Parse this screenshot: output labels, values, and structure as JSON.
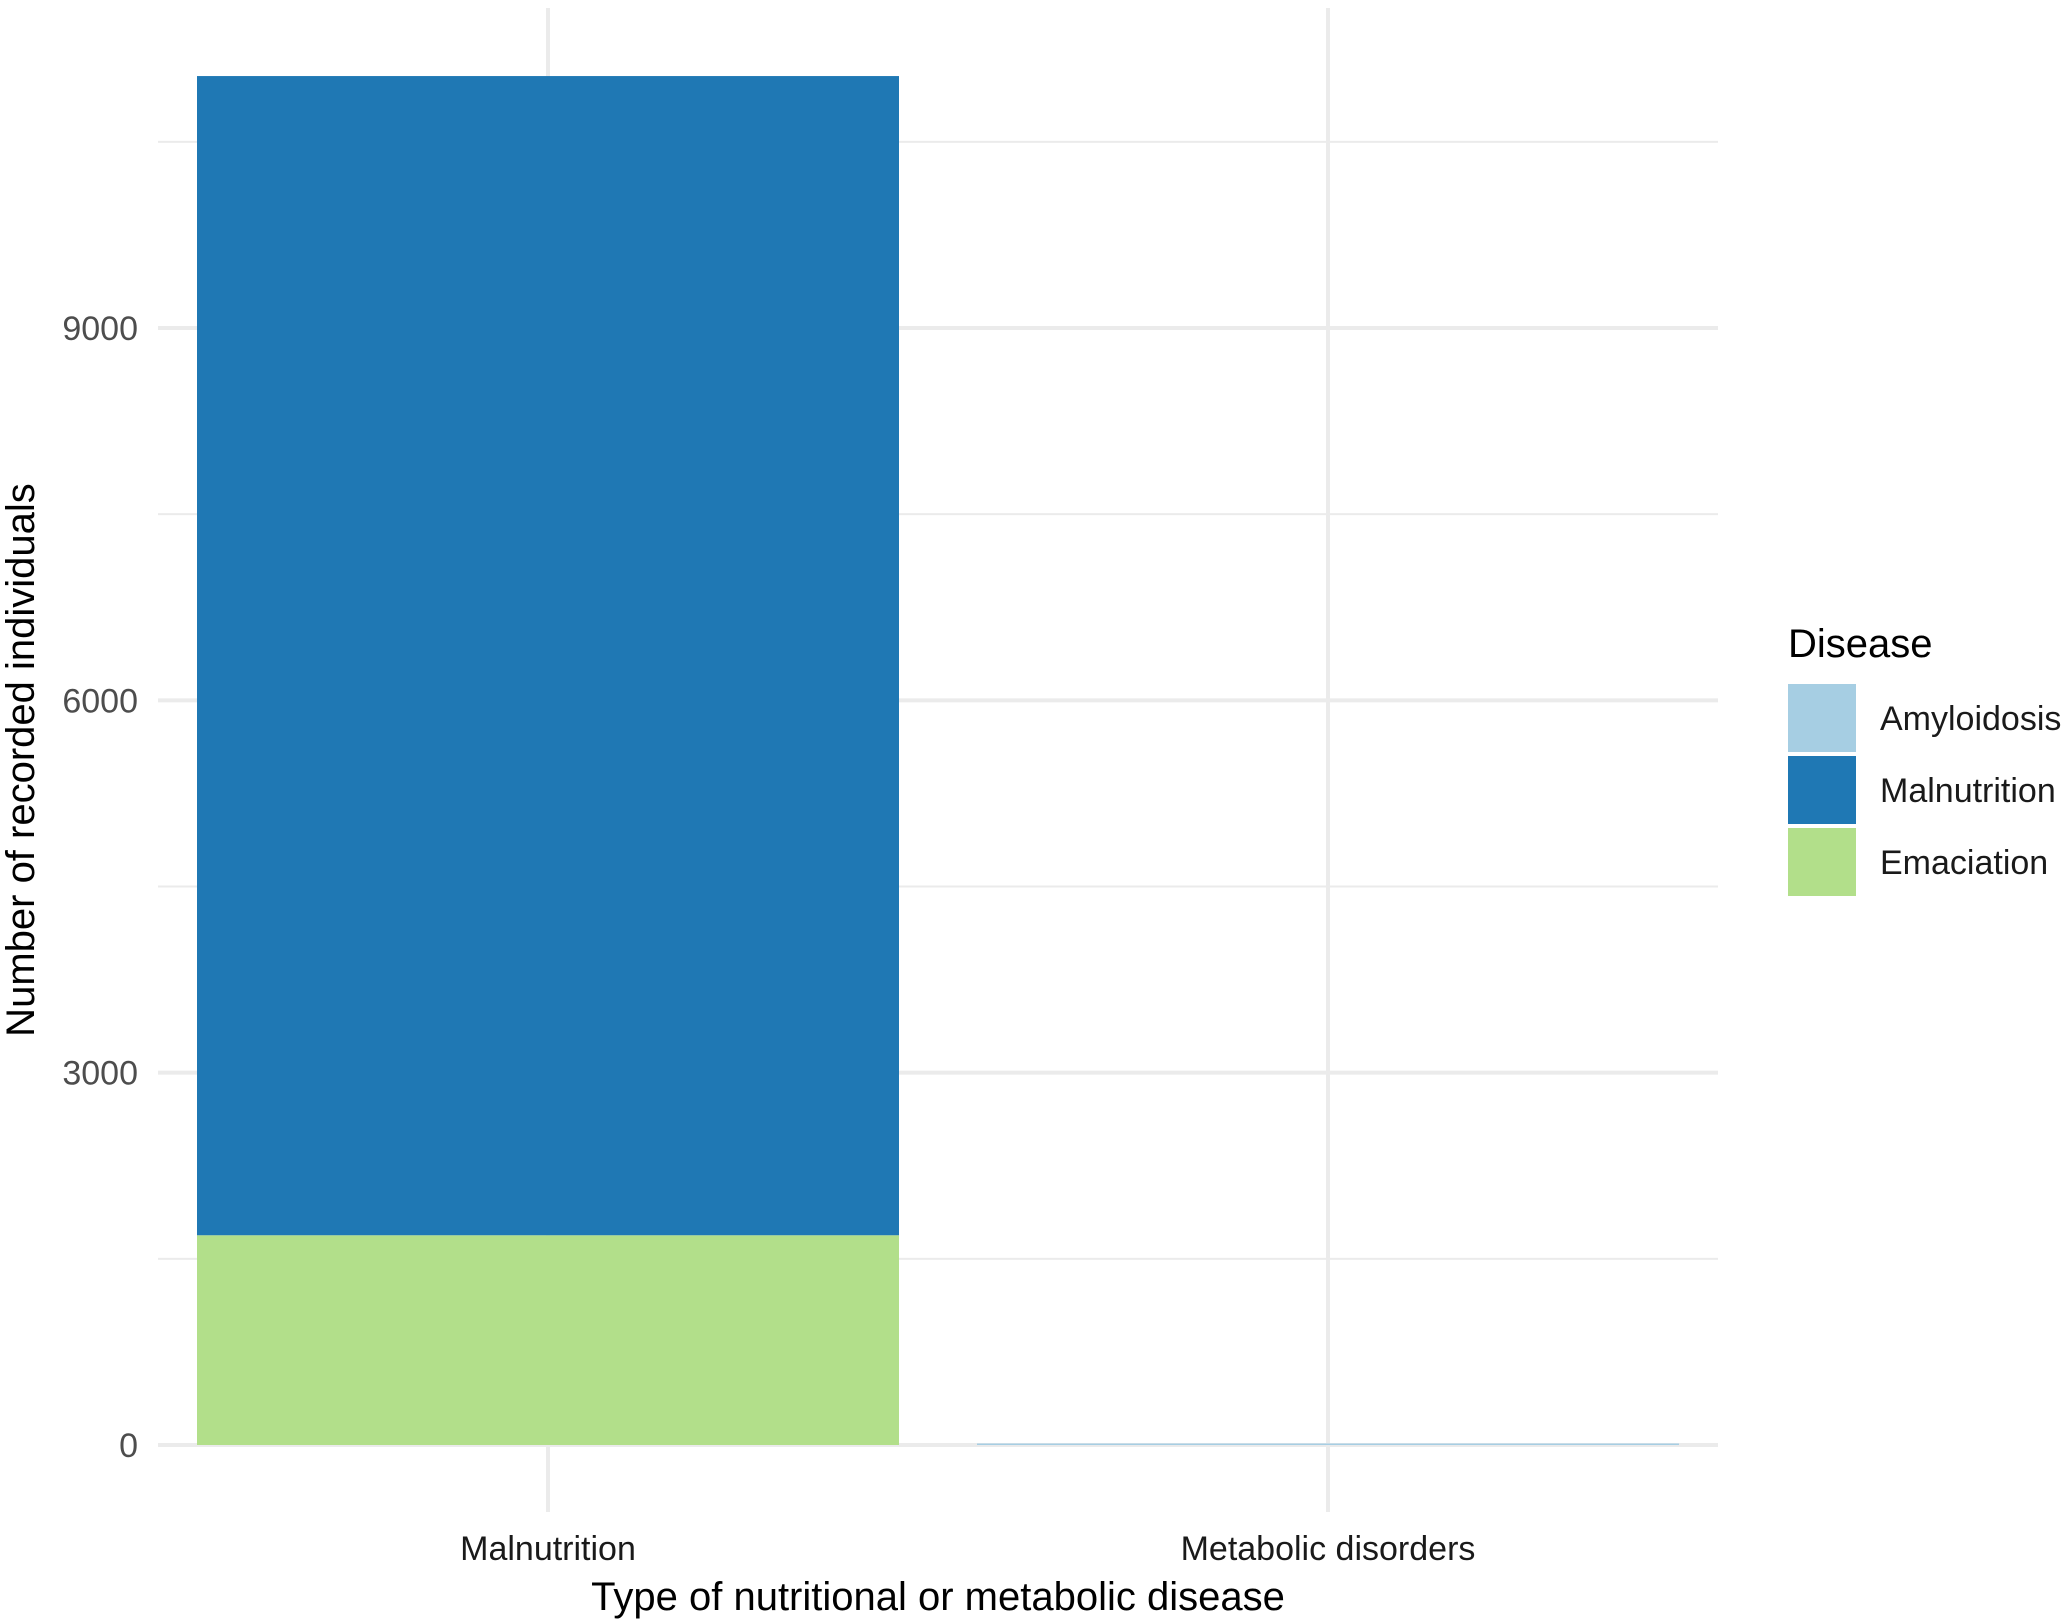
{
  "chart_data": {
    "type": "bar",
    "stacked": true,
    "categories": [
      "Malnutrition",
      "Metabolic disorders"
    ],
    "series": [
      {
        "name": "Amyloidosis",
        "color": "#A6CEE3",
        "values": [
          0,
          12
        ]
      },
      {
        "name": "Malnutrition",
        "color": "#1F78B4",
        "values": [
          9340,
          0
        ]
      },
      {
        "name": "Emaciation",
        "color": "#B2DF8A",
        "values": [
          1690,
          0
        ]
      }
    ],
    "stack_order_bottom_to_top": [
      "Emaciation",
      "Malnutrition",
      "Amyloidosis"
    ],
    "xlabel": "Type of nutritional or metabolic disease",
    "ylabel": "Number of recorded individuals",
    "yticks": [
      0,
      3000,
      6000,
      9000
    ],
    "ytick_labels": [
      "0",
      "3000",
      "6000",
      "9000"
    ],
    "ylim": [
      0,
      11030
    ],
    "grid": true,
    "legend": {
      "title": "Disease",
      "position": "right"
    }
  }
}
